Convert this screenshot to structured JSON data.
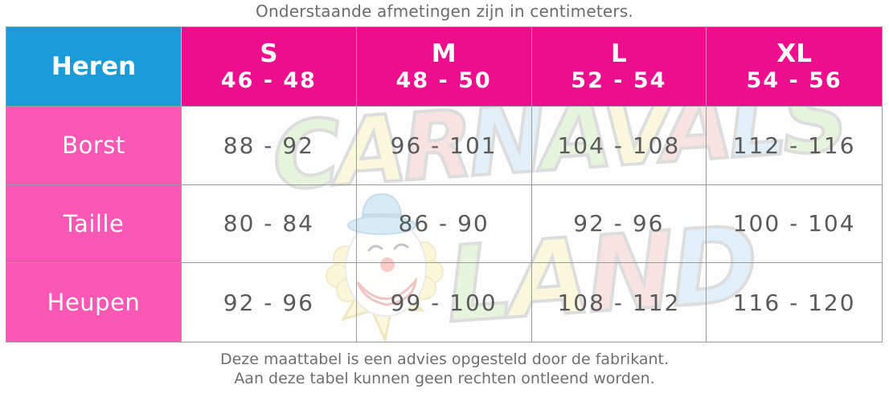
{
  "title": "Onderstaande afmetingen zijn in centimeters.",
  "table": {
    "corner_label": "Heren",
    "columns": [
      {
        "size": "S",
        "range": "46 - 48"
      },
      {
        "size": "M",
        "range": "48 - 50"
      },
      {
        "size": "L",
        "range": "52 - 54"
      },
      {
        "size": "XL",
        "range": "54 - 56"
      }
    ],
    "rows": [
      {
        "label": "Borst",
        "values": [
          "88 - 92",
          "96 - 101",
          "104 - 108",
          "112 - 116"
        ]
      },
      {
        "label": "Taille",
        "values": [
          "80 - 84",
          "86 - 90",
          "92 - 96",
          "100 - 104"
        ]
      },
      {
        "label": "Heupen",
        "values": [
          "92 - 96",
          "99 - 100",
          "108 - 112",
          "116 - 120"
        ]
      }
    ]
  },
  "footer": {
    "line1": "Deze maattabel is een advies opgesteld door de fabrikant.",
    "line2": "Aan deze tabel kunnen geen rechten ontleend worden."
  },
  "watermark": {
    "word1": "CARNAVALS",
    "word2": "LAND",
    "letter_colors": [
      "#b9e2a2",
      "#f6ee9b",
      "#f0b0ac",
      "#aed4f2"
    ],
    "clown_icon": "clown-face-with-blue-hat-and-yellow-star"
  },
  "colors": {
    "header_blue": "#1b9cd9",
    "header_magenta": "#ec0e8c",
    "row_label_pink": "#fb57b5",
    "grid_line": "#9b9b9b",
    "cell_text": "#5a5a5a",
    "note_text": "#6e6e6e",
    "header_text": "#ffffff"
  },
  "chart_data": {
    "type": "table",
    "title": "Onderstaande afmetingen zijn in centimeters.",
    "corner_label": "Heren",
    "columns": [
      "S 46 - 48",
      "M 48 - 50",
      "L 52 - 54",
      "XL 54 - 56"
    ],
    "row_labels": [
      "Borst",
      "Taille",
      "Heupen"
    ],
    "rows": [
      [
        "88 - 92",
        "96 - 101",
        "104 - 108",
        "112 - 116"
      ],
      [
        "80 - 84",
        "86 - 90",
        "92 - 96",
        "100 - 104"
      ],
      [
        "92 - 96",
        "99 - 100",
        "108 - 112",
        "116 - 120"
      ]
    ],
    "notes": [
      "Deze maattabel is een advies opgesteld door de fabrikant.",
      "Aan deze tabel kunnen geen rechten ontleend worden."
    ]
  }
}
